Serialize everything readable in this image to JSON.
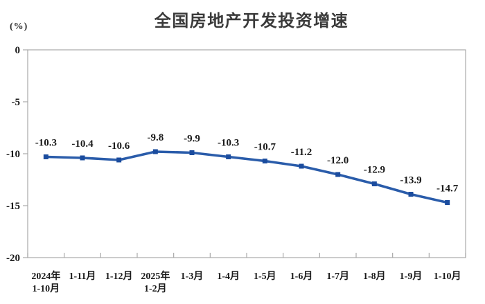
{
  "chart": {
    "title": "全国房地产开发投资增速",
    "unit_label": "(%)"
  },
  "chart_data": {
    "type": "line",
    "title": "全国房地产开发投资增速",
    "xlabel": "",
    "ylabel": "(%)",
    "categories": [
      "2024年\n1-10月",
      "1-11月",
      "1-12月",
      "2025年\n1-2月",
      "1-3月",
      "1-4月",
      "1-5月",
      "1-6月",
      "1-7月",
      "1-8月",
      "1-9月",
      "1-10月"
    ],
    "values": [
      -10.3,
      -10.4,
      -10.6,
      -9.8,
      -9.9,
      -10.3,
      -10.7,
      -11.2,
      -12.0,
      -12.9,
      -13.9,
      -14.7
    ],
    "data_labels": [
      "-10.3",
      "-10.4",
      "-10.6",
      "-9.8",
      "-9.9",
      "-10.3",
      "-10.7",
      "-11.2",
      "-12.0",
      "-12.9",
      "-13.9",
      "-14.7"
    ],
    "y_ticks": [
      0,
      -5,
      -10,
      -15,
      -20
    ],
    "ylim": [
      -20,
      0
    ],
    "grid": false,
    "legend": "none",
    "colors": {
      "line": "#2a5caa",
      "marker": "#1b4c9e",
      "axis": "#a9a9a9",
      "text": "#1a1a1a",
      "title": "#3a3a3a"
    }
  }
}
